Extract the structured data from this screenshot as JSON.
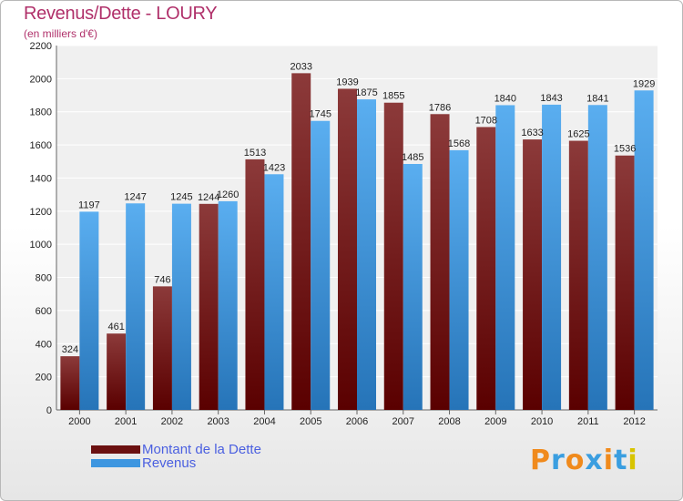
{
  "title": "Revenus/Dette - LOURY",
  "subtitle": "(en milliers d'€)",
  "logo_text": "Proxiti",
  "colors": {
    "debt_dark": "#5a0000",
    "debt_light": "#8c3a3a",
    "revenue_dark": "#2674b8",
    "revenue_light": "#5aaef0",
    "title": "#b0306a",
    "legend_text": "#4a5fe0"
  },
  "legend": [
    {
      "label": "Montant de la Dette",
      "color": "#6b1010"
    },
    {
      "label": "Revenus",
      "color": "#3d96e0"
    }
  ],
  "chart_data": {
    "type": "bar",
    "categories": [
      "2000",
      "2001",
      "2002",
      "2003",
      "2004",
      "2005",
      "2006",
      "2007",
      "2008",
      "2009",
      "2010",
      "2011",
      "2012"
    ],
    "series": [
      {
        "name": "Montant de la Dette",
        "values": [
          324,
          461,
          746,
          1244,
          1513,
          2033,
          1939,
          1855,
          1786,
          1708,
          1633,
          1625,
          1536
        ]
      },
      {
        "name": "Revenus",
        "values": [
          1197,
          1247,
          1245,
          1260,
          1423,
          1745,
          1875,
          1485,
          1568,
          1840,
          1843,
          1841,
          1929
        ]
      }
    ],
    "yticks": [
      0,
      200,
      400,
      600,
      800,
      1000,
      1200,
      1400,
      1600,
      1800,
      2000,
      2200
    ],
    "ylim": [
      0,
      2200
    ],
    "grid": true,
    "data_labels": true,
    "legend_position": "bottom-left"
  }
}
